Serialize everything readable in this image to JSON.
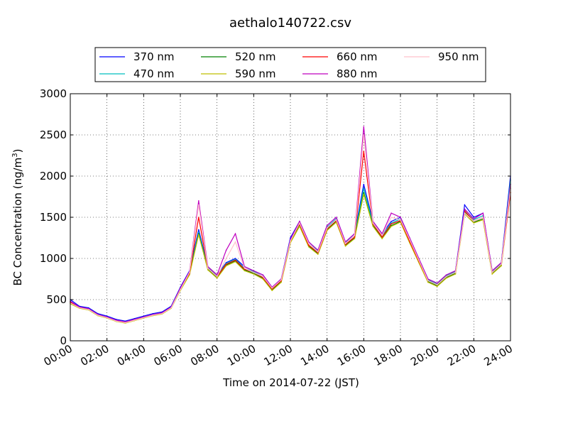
{
  "chart_data": {
    "type": "line",
    "title": "aethalo140722.csv",
    "xlabel": "Time on 2014-07-22 (JST)",
    "ylabel": "BC Concentration (ng/m",
    "ylabel_sup": "3",
    "ylabel_close": ")",
    "xlim": [
      0,
      24
    ],
    "ylim": [
      0,
      3000
    ],
    "grid": true,
    "legend_placement": "top-center",
    "x_ticks": [
      {
        "value": 0,
        "label": "00:00"
      },
      {
        "value": 2,
        "label": "02:00"
      },
      {
        "value": 4,
        "label": "04:00"
      },
      {
        "value": 6,
        "label": "06:00"
      },
      {
        "value": 8,
        "label": "08:00"
      },
      {
        "value": 10,
        "label": "10:00"
      },
      {
        "value": 12,
        "label": "12:00"
      },
      {
        "value": 14,
        "label": "14:00"
      },
      {
        "value": 16,
        "label": "16:00"
      },
      {
        "value": 18,
        "label": "18:00"
      },
      {
        "value": 20,
        "label": "20:00"
      },
      {
        "value": 22,
        "label": "22:00"
      },
      {
        "value": 24,
        "label": "24:00"
      }
    ],
    "y_ticks": [
      {
        "value": 0,
        "label": "0"
      },
      {
        "value": 500,
        "label": "500"
      },
      {
        "value": 1000,
        "label": "1000"
      },
      {
        "value": 1500,
        "label": "1500"
      },
      {
        "value": 2000,
        "label": "2000"
      },
      {
        "value": 2500,
        "label": "2500"
      },
      {
        "value": 3000,
        "label": "3000"
      }
    ],
    "x": [
      0,
      0.5,
      1,
      1.5,
      2,
      2.5,
      3,
      3.5,
      4,
      4.5,
      5,
      5.5,
      6,
      6.5,
      7,
      7.5,
      8,
      8.5,
      9,
      9.5,
      10,
      10.5,
      11,
      11.5,
      12,
      12.5,
      13,
      13.5,
      14,
      14.5,
      15,
      15.5,
      16,
      16.5,
      17,
      17.5,
      18,
      18.5,
      19,
      19.5,
      20,
      20.5,
      21,
      21.5,
      22,
      22.5,
      23,
      23.5,
      24
    ],
    "series": [
      {
        "name": "370 nm",
        "color": "#0000ff",
        "values": [
          500,
          420,
          400,
          330,
          300,
          260,
          240,
          270,
          300,
          330,
          350,
          420,
          650,
          850,
          1350,
          900,
          800,
          950,
          1000,
          900,
          850,
          800,
          650,
          750,
          1250,
          1450,
          1200,
          1100,
          1400,
          1500,
          1200,
          1300,
          1900,
          1450,
          1300,
          1450,
          1500,
          1250,
          1000,
          750,
          700,
          800,
          850,
          1650,
          1500,
          1550,
          850,
          950,
          2000
        ]
      },
      {
        "name": "470 nm",
        "color": "#00bfbf",
        "values": [
          480,
          410,
          390,
          320,
          290,
          250,
          230,
          260,
          290,
          320,
          340,
          410,
          640,
          830,
          1320,
          890,
          790,
          940,
          990,
          880,
          840,
          780,
          640,
          740,
          1230,
          1430,
          1180,
          1090,
          1380,
          1480,
          1190,
          1280,
          1850,
          1430,
          1280,
          1430,
          1480,
          1230,
          980,
          740,
          690,
          790,
          840,
          1600,
          1470,
          1520,
          840,
          940,
          1950
        ]
      },
      {
        "name": "520 nm",
        "color": "#008000",
        "values": [
          460,
          400,
          380,
          310,
          280,
          240,
          220,
          250,
          280,
          310,
          330,
          400,
          620,
          810,
          1300,
          870,
          770,
          920,
          970,
          860,
          820,
          760,
          620,
          720,
          1200,
          1400,
          1150,
          1060,
          1350,
          1450,
          1160,
          1250,
          1800,
          1400,
          1250,
          1400,
          1450,
          1200,
          960,
          720,
          670,
          770,
          820,
          1560,
          1440,
          1480,
          820,
          920,
          1850
        ]
      },
      {
        "name": "590 nm",
        "color": "#bfbf00",
        "values": [
          450,
          395,
          375,
          305,
          275,
          235,
          215,
          245,
          275,
          305,
          325,
          395,
          610,
          800,
          1290,
          860,
          760,
          910,
          960,
          850,
          810,
          750,
          610,
          710,
          1190,
          1390,
          1140,
          1050,
          1340,
          1440,
          1150,
          1240,
          1780,
          1390,
          1240,
          1390,
          1440,
          1190,
          950,
          710,
          660,
          760,
          810,
          1540,
          1430,
          1470,
          810,
          910,
          1800
        ]
      },
      {
        "name": "660 nm",
        "color": "#ff0000",
        "values": [
          470,
          405,
          385,
          315,
          285,
          245,
          225,
          255,
          285,
          315,
          335,
          405,
          630,
          820,
          1500,
          880,
          780,
          930,
          980,
          870,
          830,
          770,
          630,
          730,
          1210,
          1420,
          1160,
          1070,
          1360,
          1460,
          1170,
          1260,
          2300,
          1420,
          1260,
          1420,
          1460,
          1210,
          970,
          730,
          680,
          780,
          830,
          1580,
          1450,
          1500,
          830,
          930,
          1800
        ]
      },
      {
        "name": "880 nm",
        "color": "#bf00bf",
        "values": [
          480,
          410,
          390,
          320,
          290,
          250,
          230,
          260,
          290,
          320,
          340,
          410,
          640,
          840,
          1700,
          900,
          800,
          1100,
          1300,
          900,
          850,
          800,
          650,
          750,
          1230,
          1450,
          1200,
          1100,
          1400,
          1500,
          1200,
          1300,
          2600,
          1450,
          1300,
          1550,
          1500,
          1250,
          1000,
          750,
          700,
          800,
          850,
          1600,
          1480,
          1550,
          850,
          950,
          1900
        ]
      },
      {
        "name": "950 nm",
        "color": "#ffc0cb",
        "values": [
          460,
          400,
          380,
          310,
          280,
          240,
          220,
          250,
          280,
          310,
          330,
          400,
          620,
          830,
          1650,
          880,
          780,
          1000,
          1200,
          880,
          830,
          780,
          640,
          740,
          1210,
          1430,
          1180,
          1080,
          1370,
          1470,
          1180,
          1280,
          2500,
          1430,
          1280,
          1500,
          1470,
          1230,
          980,
          730,
          680,
          780,
          830,
          1550,
          1450,
          1500,
          830,
          930,
          1850
        ]
      }
    ]
  }
}
